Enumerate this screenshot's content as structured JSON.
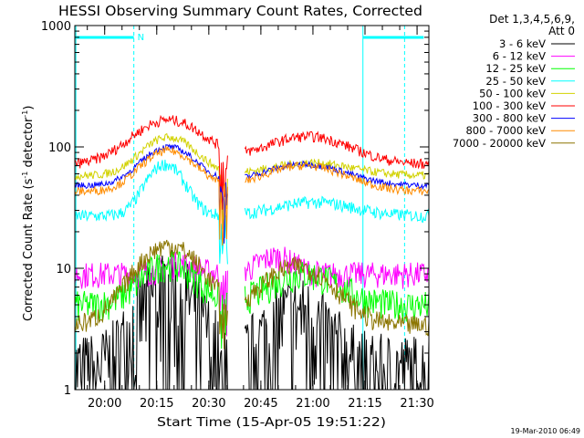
{
  "chart_data": {
    "type": "line",
    "title": "HESSI Observing Summary Count Rates, Corrected",
    "xlabel": "Start Time (15-Apr-05 19:51:22)",
    "ylabel": "Corrected Count Rate (s⁻¹ detector⁻¹)",
    "ylabel_parts": {
      "main": "Corrected Count Rate (s",
      "exp1": "-1",
      "mid": " detector",
      "exp2": "-1",
      "end": ")"
    },
    "yscale": "log",
    "ylim": [
      1,
      1000
    ],
    "ytick_labels": [
      "1",
      "10",
      "100",
      "1000"
    ],
    "xlim_minutes": [
      0,
      102
    ],
    "x_unit": "minutes after 19:51:22",
    "xtick_labels": [
      "20:00",
      "20:15",
      "20:30",
      "20:45",
      "21:00",
      "21:15",
      "21:30"
    ],
    "xtick_minutes": [
      8.6,
      23.6,
      38.6,
      53.6,
      68.6,
      83.6,
      98.6
    ],
    "legend": {
      "header_line1": "Det 1,3,4,5,6,9,",
      "header_line2": "Att 0",
      "placement": "right of plot"
    },
    "series": [
      {
        "name": "3 - 6 keV",
        "color": "#000000"
      },
      {
        "name": "6 - 12 keV",
        "color": "#ff00ff"
      },
      {
        "name": "12 - 25 keV",
        "color": "#00ff00"
      },
      {
        "name": "25 - 50 keV",
        "color": "#00ffff"
      },
      {
        "name": "50 - 100 keV",
        "color": "#d2d200"
      },
      {
        "name": "100 - 300 keV",
        "color": "#ff0000"
      },
      {
        "name": "300 - 800 keV",
        "color": "#0000ff"
      },
      {
        "name": "800 - 7000 keV",
        "color": "#ff8c00"
      },
      {
        "name": "7000 - 20000 keV",
        "color": "#8b7500"
      }
    ],
    "annotations": {
      "night_marker": "N",
      "night_start_min": 17.0,
      "night_end_min": 83.0,
      "saa_start_min": 95.0,
      "data_gap_min": [
        44.2,
        48.8
      ],
      "top_bars": [
        [
          0,
          17.0
        ],
        [
          83.0,
          100.5
        ]
      ]
    }
  },
  "footer_timestamp": "19-Mar-2010 06:49"
}
